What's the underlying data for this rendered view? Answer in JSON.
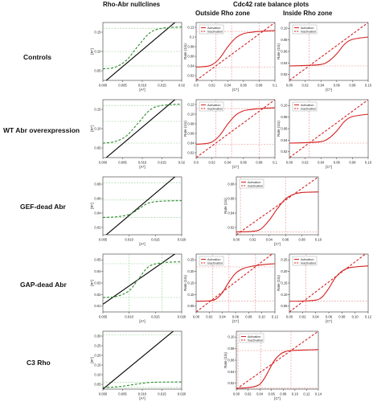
{
  "headers": {
    "left": "Rho-Abr nullclines",
    "right": "Cdc42 rate balance plots",
    "outside": "Outside Rho zone",
    "inside": "Inside Rho zone"
  },
  "rows": [
    {
      "label": "Controls"
    },
    {
      "label": "WT Abr overexpression"
    },
    {
      "label": "GEF-dead Abr"
    },
    {
      "label": "GAP-dead Abr"
    },
    {
      "label": "C3 Rho"
    }
  ],
  "colors": {
    "activation": "#d42020",
    "inactivation": "#d42020",
    "nullcline_black": "#000000",
    "nullcline_green": "#2e8b2e"
  },
  "legend": {
    "activation": "Activation",
    "inactivation": "Inactivation"
  },
  "chart_data": [
    {
      "id": "controls-nullcline",
      "type": "line",
      "row": 0,
      "col": 0,
      "xticks": [
        "0.000",
        "0.005",
        "0.010",
        "0.015",
        "0.02"
      ],
      "yticks": [
        "0.05",
        "0.10",
        "0.15"
      ],
      "xlabel": "[A*]",
      "ylabel": "[R*]",
      "xlim": [
        0,
        0.02
      ],
      "ylim": [
        0,
        0.2
      ],
      "series": [
        {
          "color": "black",
          "style": "solid",
          "x": [
            0,
            0.02
          ],
          "y": [
            -0.01,
            0.22
          ]
        },
        {
          "color": "green",
          "style": "dashed",
          "x": [
            0,
            0.003,
            0.006,
            0.009,
            0.012,
            0.015,
            0.02
          ],
          "y": [
            0.04,
            0.045,
            0.07,
            0.12,
            0.165,
            0.18,
            0.185
          ]
        }
      ],
      "hlines": [
        0.05,
        0.1,
        0.18
      ],
      "vlines": []
    },
    {
      "id": "controls-outside",
      "type": "line",
      "row": 0,
      "col": 1,
      "xticks": [
        "0.0",
        "0.02",
        "0.04",
        "0.06",
        "0.08",
        "0.1"
      ],
      "yticks": [
        "0.02",
        "0.04",
        "0.06",
        "0.08",
        "0.1",
        "0.12"
      ],
      "xlabel": "[C*]",
      "ylabel": "Rate (1/s)",
      "xlim": [
        0,
        0.1
      ],
      "ylim": [
        0,
        0.13
      ],
      "series": [
        {
          "name": "Activation",
          "color": "red",
          "style": "solid",
          "x": [
            0,
            0.01,
            0.02,
            0.03,
            0.04,
            0.05,
            0.06,
            0.07,
            0.08,
            0.1
          ],
          "y": [
            0.03,
            0.031,
            0.035,
            0.05,
            0.075,
            0.095,
            0.105,
            0.108,
            0.11,
            0.112
          ]
        },
        {
          "name": "Inactivation",
          "color": "red",
          "style": "dashed",
          "x": [
            0,
            0.1
          ],
          "y": [
            0,
            0.13
          ]
        }
      ],
      "vlines": [
        0.025,
        0.045,
        0.08
      ],
      "hlines": [
        0.03,
        0.11
      ]
    },
    {
      "id": "controls-inside",
      "type": "line",
      "row": 0,
      "col": 2,
      "xticks": [
        "0.00",
        "0.02",
        "0.04",
        "0.06",
        "0.08",
        "0.10"
      ],
      "yticks": [
        "0.02",
        "0.04",
        "0.06",
        "0.08",
        "0.10"
      ],
      "xlabel": "[C*]",
      "ylabel": "Rate (1/s)",
      "xlim": [
        0,
        0.1
      ],
      "ylim": [
        0,
        0.12
      ],
      "series": [
        {
          "name": "Activation",
          "color": "red",
          "style": "solid",
          "x": [
            0,
            0.02,
            0.04,
            0.05,
            0.06,
            0.07,
            0.08,
            0.1
          ],
          "y": [
            0.03,
            0.031,
            0.033,
            0.04,
            0.055,
            0.075,
            0.085,
            0.09
          ]
        },
        {
          "name": "Inactivation",
          "color": "red",
          "style": "dashed",
          "x": [
            0,
            0.1
          ],
          "y": [
            0,
            0.12
          ]
        }
      ],
      "vlines": [
        0.025
      ],
      "hlines": [
        0.03
      ]
    },
    {
      "id": "wt-nullcline",
      "type": "line",
      "row": 1,
      "col": 0,
      "xticks": [
        "0.000",
        "0.005",
        "0.010",
        "0.015",
        "0.02"
      ],
      "yticks": [
        "0.05",
        "0.10",
        "0.15"
      ],
      "xlabel": "[A*]",
      "ylabel": "[R*]",
      "xlim": [
        0,
        0.02
      ],
      "ylim": [
        0,
        0.2
      ],
      "series": [
        {
          "color": "black",
          "style": "solid",
          "x": [
            0,
            0.02
          ],
          "y": [
            -0.01,
            0.22
          ]
        },
        {
          "color": "green",
          "style": "dashed",
          "x": [
            0,
            0.003,
            0.006,
            0.009,
            0.012,
            0.015,
            0.02
          ],
          "y": [
            0.05,
            0.055,
            0.075,
            0.12,
            0.165,
            0.18,
            0.185
          ]
        }
      ],
      "hlines": [
        0.05,
        0.125,
        0.18
      ],
      "vlines": []
    },
    {
      "id": "wt-outside",
      "type": "line",
      "row": 1,
      "col": 1,
      "xticks": [
        "0.0",
        "0.02",
        "0.04",
        "0.06",
        "0.08",
        "0.1"
      ],
      "yticks": [
        "0.02",
        "0.04",
        "0.06",
        "0.08",
        "0.10",
        "0.12"
      ],
      "xlabel": "[C*]",
      "ylabel": "Rate (1/s)",
      "xlim": [
        0,
        0.1
      ],
      "ylim": [
        0,
        0.13
      ],
      "series": [
        {
          "name": "Activation",
          "color": "red",
          "style": "solid",
          "x": [
            0,
            0.01,
            0.02,
            0.03,
            0.04,
            0.05,
            0.06,
            0.07,
            0.08,
            0.1
          ],
          "y": [
            0.03,
            0.031,
            0.035,
            0.05,
            0.075,
            0.095,
            0.105,
            0.108,
            0.11,
            0.112
          ]
        },
        {
          "name": "Inactivation",
          "color": "red",
          "style": "dashed",
          "x": [
            0,
            0.1
          ],
          "y": [
            0,
            0.13
          ]
        }
      ],
      "vlines": [
        0.025,
        0.045,
        0.08
      ],
      "hlines": [
        0.03,
        0.11
      ]
    },
    {
      "id": "wt-inside",
      "type": "line",
      "row": 1,
      "col": 2,
      "xticks": [
        "0.00",
        "0.02",
        "0.04",
        "0.06",
        "0.08",
        "0.10"
      ],
      "yticks": [
        "0.02",
        "0.04",
        "0.06",
        "0.08",
        "0.10"
      ],
      "xlabel": "[C*]",
      "ylabel": "Rate (1/s)",
      "xlim": [
        0,
        0.1
      ],
      "ylim": [
        0,
        0.12
      ],
      "series": [
        {
          "name": "Activation",
          "color": "red",
          "style": "solid",
          "x": [
            0,
            0.02,
            0.04,
            0.05,
            0.06,
            0.07,
            0.08,
            0.1
          ],
          "y": [
            0.03,
            0.031,
            0.033,
            0.04,
            0.055,
            0.075,
            0.085,
            0.09
          ]
        },
        {
          "name": "Inactivation",
          "color": "red",
          "style": "dashed",
          "x": [
            0,
            0.1
          ],
          "y": [
            0,
            0.12
          ]
        }
      ],
      "vlines": [
        0.025
      ],
      "hlines": [
        0.03
      ]
    },
    {
      "id": "gefdead-nullcline",
      "type": "line",
      "row": 2,
      "col": 0,
      "xticks": [
        "0.005",
        "0.010",
        "0.015",
        "0.020"
      ],
      "yticks": [
        "0.02",
        "0.04",
        "0.06",
        "0.08"
      ],
      "xlabel": "[A*]",
      "ylabel": "[R*]",
      "xlim": [
        0,
        0.024
      ],
      "ylim": [
        0,
        0.1
      ],
      "series": [
        {
          "color": "black",
          "style": "solid",
          "x": [
            0,
            0.024
          ],
          "y": [
            -0.005,
            0.11
          ]
        },
        {
          "color": "green",
          "style": "dashed",
          "x": [
            0,
            0.004,
            0.008,
            0.011,
            0.014,
            0.018,
            0.024
          ],
          "y": [
            0.03,
            0.031,
            0.035,
            0.045,
            0.055,
            0.058,
            0.059
          ]
        }
      ],
      "hlines": [
        0.03,
        0.06,
        0.09
      ],
      "vlines": []
    },
    {
      "id": "gefdead-rate",
      "type": "line",
      "row": 2,
      "col": 1,
      "xticks": [
        "0.00",
        "0.02",
        "0.04",
        "0.06",
        "0.08",
        "0.10"
      ],
      "yticks": [
        "0.02",
        "0.04",
        "0.06",
        "0.08"
      ],
      "xlabel": "[C*]",
      "ylabel": "Rate (1/s)",
      "xlim": [
        0,
        0.1
      ],
      "ylim": [
        0,
        0.1
      ],
      "series": [
        {
          "name": "Activation",
          "color": "red",
          "style": "solid",
          "x": [
            0,
            0.02,
            0.03,
            0.04,
            0.05,
            0.06,
            0.07,
            0.08,
            0.1
          ],
          "y": [
            0.005,
            0.006,
            0.01,
            0.025,
            0.045,
            0.062,
            0.07,
            0.073,
            0.074
          ]
        },
        {
          "name": "Inactivation",
          "color": "red",
          "style": "dashed",
          "x": [
            0,
            0.1
          ],
          "y": [
            0,
            0.1
          ]
        }
      ],
      "vlines": [
        0.005,
        0.06
      ],
      "hlines": [
        0.005
      ]
    },
    {
      "id": "gapdead-nullcline",
      "type": "line",
      "row": 3,
      "col": 0,
      "xticks": [
        "0.005",
        "0.010",
        "0.015",
        "0.020"
      ],
      "yticks": [
        "0.01",
        "0.02",
        "0.03",
        "0.04",
        "0.05"
      ],
      "xlabel": "[A*]",
      "ylabel": "[R*]",
      "xlim": [
        0,
        0.024
      ],
      "ylim": [
        0,
        0.06
      ],
      "series": [
        {
          "color": "black",
          "style": "solid",
          "x": [
            0,
            0.024
          ],
          "y": [
            0.008,
            0.065
          ]
        },
        {
          "color": "green",
          "style": "dashed",
          "x": [
            0,
            0.004,
            0.008,
            0.011,
            0.014,
            0.018,
            0.024
          ],
          "y": [
            0.015,
            0.016,
            0.022,
            0.035,
            0.047,
            0.051,
            0.052
          ]
        }
      ],
      "hlines": [
        0.015,
        0.05
      ],
      "vlines": [
        0.008,
        0.018
      ]
    },
    {
      "id": "gapdead-outside",
      "type": "line",
      "row": 3,
      "col": 1,
      "xticks": [
        "0.00",
        "0.02",
        "0.04",
        "0.06",
        "0.08",
        "0.10",
        "0.12"
      ],
      "yticks": [
        "0.05",
        "0.10",
        "0.15",
        "0.20",
        "0.25"
      ],
      "xlabel": "[C*]",
      "ylabel": "Rate (1/s)",
      "xlim": [
        0,
        0.12
      ],
      "ylim": [
        0,
        0.27
      ],
      "series": [
        {
          "name": "Activation",
          "color": "red",
          "style": "solid",
          "x": [
            0,
            0.02,
            0.03,
            0.04,
            0.05,
            0.06,
            0.07,
            0.08,
            0.1,
            0.12
          ],
          "y": [
            0.05,
            0.052,
            0.06,
            0.09,
            0.14,
            0.18,
            0.2,
            0.21,
            0.22,
            0.225
          ]
        },
        {
          "name": "Inactivation",
          "color": "red",
          "style": "dashed",
          "x": [
            0,
            0.12
          ],
          "y": [
            0,
            0.28
          ]
        }
      ],
      "vlines": [
        0.025,
        0.05,
        0.09
      ],
      "hlines": [
        0.05,
        0.21
      ]
    },
    {
      "id": "gapdead-inside",
      "type": "line",
      "row": 3,
      "col": 2,
      "xticks": [
        "0.00",
        "0.02",
        "0.04",
        "0.06",
        "0.08",
        "0.10",
        "0.12"
      ],
      "yticks": [
        "0.05",
        "0.10",
        "0.15",
        "0.20",
        "0.25"
      ],
      "xlabel": "[C*]",
      "ylabel": "Rate (1/s)",
      "xlim": [
        0,
        0.12
      ],
      "ylim": [
        0,
        0.27
      ],
      "series": [
        {
          "name": "Activation",
          "color": "red",
          "style": "solid",
          "x": [
            0,
            0.02,
            0.04,
            0.05,
            0.06,
            0.07,
            0.08,
            0.09,
            0.1,
            0.12
          ],
          "y": [
            0.05,
            0.051,
            0.055,
            0.07,
            0.11,
            0.16,
            0.19,
            0.205,
            0.21,
            0.215
          ]
        },
        {
          "name": "Inactivation",
          "color": "red",
          "style": "dashed",
          "x": [
            0,
            0.12
          ],
          "y": [
            0,
            0.28
          ]
        }
      ],
      "vlines": [
        0.025
      ],
      "hlines": [
        0.05
      ]
    },
    {
      "id": "c3-nullcline",
      "type": "line",
      "row": 4,
      "col": 0,
      "xticks": [
        "0.000",
        "0.005",
        "0.010",
        "0.015",
        "0.020"
      ],
      "yticks": [
        "0.05",
        "0.10",
        "0.15",
        "0.20",
        "0.25",
        "0.30"
      ],
      "xlabel": "[A*]",
      "ylabel": "[R*]",
      "xlim": [
        0,
        0.02
      ],
      "ylim": [
        0,
        0.33
      ],
      "series": [
        {
          "color": "black",
          "style": "solid",
          "x": [
            0,
            0.02
          ],
          "y": [
            0.0,
            0.37
          ]
        },
        {
          "color": "green",
          "style": "dashed",
          "x": [
            0,
            0.003,
            0.006,
            0.009,
            0.012,
            0.015,
            0.02
          ],
          "y": [
            0.01,
            0.012,
            0.02,
            0.03,
            0.038,
            0.04,
            0.041
          ]
        }
      ],
      "hlines": [
        0.01,
        0.04,
        0.31
      ],
      "vlines": []
    },
    {
      "id": "c3-rate",
      "type": "line",
      "row": 4,
      "col": 1,
      "xticks": [
        "0.00",
        "0.02",
        "0.04",
        "0.06",
        "0.08",
        "0.10",
        "0.12",
        "0.14"
      ],
      "yticks": [
        "0.02",
        "0.04",
        "0.06",
        "0.08",
        "0.10"
      ],
      "xlabel": "[C*]",
      "ylabel": "Rate (1/s)",
      "xlim": [
        0,
        0.15
      ],
      "ylim": [
        0,
        0.12
      ],
      "series": [
        {
          "name": "Activation",
          "color": "red",
          "style": "solid",
          "x": [
            0,
            0.02,
            0.04,
            0.05,
            0.06,
            0.07,
            0.08,
            0.09,
            0.1,
            0.12,
            0.15
          ],
          "y": [
            0.002,
            0.003,
            0.008,
            0.02,
            0.04,
            0.06,
            0.072,
            0.078,
            0.08,
            0.081,
            0.082
          ]
        },
        {
          "name": "Inactivation",
          "color": "red",
          "style": "dashed",
          "x": [
            0,
            0.15
          ],
          "y": [
            0,
            0.12
          ]
        }
      ],
      "vlines": [
        0.003,
        0.045,
        0.1
      ],
      "hlines": [
        0.002,
        0.08
      ]
    }
  ]
}
